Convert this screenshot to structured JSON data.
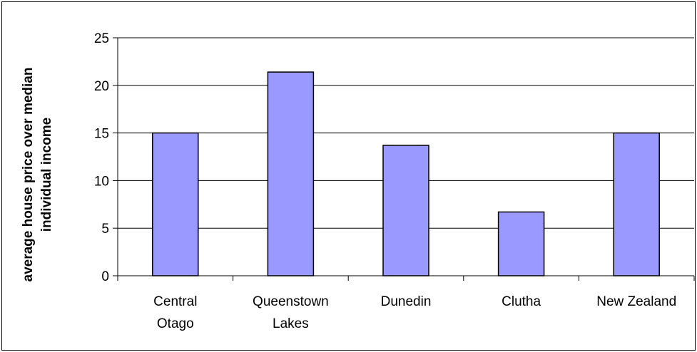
{
  "chart_data": {
    "type": "bar",
    "title": "",
    "xlabel": "",
    "ylabel": "average house price over median individual income",
    "ylabel_lines": [
      "average house price over median",
      "individual income"
    ],
    "categories": [
      "Central Otago",
      "Queenstown Lakes",
      "Dunedin",
      "Clutha",
      "New Zealand"
    ],
    "category_lines": [
      [
        "Central",
        "Otago"
      ],
      [
        "Queenstown",
        "Lakes"
      ],
      [
        "Dunedin"
      ],
      [
        "Clutha"
      ],
      [
        "New Zealand"
      ]
    ],
    "values": [
      15.0,
      21.4,
      13.7,
      6.7,
      15.0
    ],
    "ylim": [
      0,
      25
    ],
    "yticks": [
      0,
      5,
      10,
      15,
      20,
      25
    ],
    "grid": true,
    "legend": "none",
    "bar_color": "#9999ff",
    "bar_edge_color": "#000000",
    "grid_color": "#000000"
  }
}
